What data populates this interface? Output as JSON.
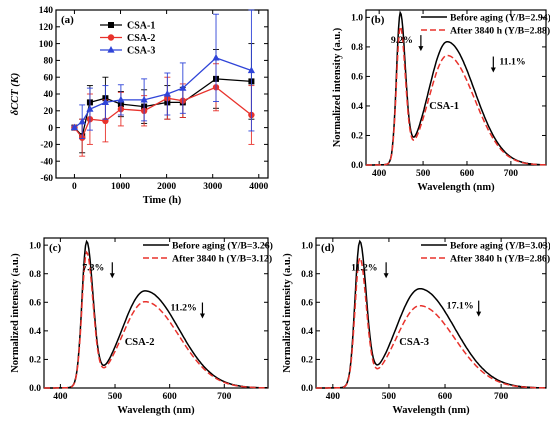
{
  "figure": {
    "panels": [
      {
        "letter": "(a)",
        "chart_index": 0
      },
      {
        "letter": "(b)",
        "chart_index": 1
      },
      {
        "letter": "(c)",
        "chart_index": 2
      },
      {
        "letter": "(d)",
        "chart_index": 3
      }
    ]
  },
  "chart_data": [
    {
      "type": "line",
      "panel": "(a)",
      "xlabel": "Time (h)",
      "ylabel": "δCCT (K)",
      "xlim": [
        -400,
        4200
      ],
      "ylim": [
        -60,
        140
      ],
      "xticks": [
        0,
        1000,
        2000,
        3000,
        4000
      ],
      "yticks": [
        -60,
        -40,
        -20,
        0,
        20,
        40,
        60,
        80,
        100,
        120,
        140
      ],
      "legend_position": "top-left",
      "series": [
        {
          "name": "CSA-1",
          "color": "#000000",
          "marker": "square",
          "x": [
            0,
            168,
            336,
            672,
            1008,
            1512,
            2016,
            2352,
            3072,
            3840
          ],
          "y": [
            0,
            -10,
            30,
            35,
            28,
            25,
            30,
            30,
            58,
            55
          ],
          "err": [
            2,
            20,
            20,
            25,
            15,
            20,
            20,
            18,
            35,
            45
          ]
        },
        {
          "name": "CSA-2",
          "color": "#e8322c",
          "marker": "circle",
          "x": [
            0,
            168,
            336,
            672,
            1008,
            1512,
            2016,
            2352,
            3072,
            3840
          ],
          "y": [
            0,
            -12,
            10,
            8,
            22,
            20,
            35,
            32,
            48,
            15
          ],
          "err": [
            2,
            22,
            30,
            25,
            20,
            18,
            25,
            20,
            28,
            35
          ]
        },
        {
          "name": "CSA-3",
          "color": "#2f44d8",
          "marker": "triangle",
          "x": [
            0,
            168,
            336,
            672,
            1008,
            1512,
            2016,
            2352,
            3072,
            3840
          ],
          "y": [
            0,
            7,
            22,
            30,
            33,
            33,
            40,
            47,
            83,
            68
          ],
          "err": [
            2,
            20,
            25,
            20,
            18,
            25,
            25,
            30,
            52,
            72
          ]
        }
      ]
    },
    {
      "type": "line",
      "panel": "(b)",
      "sample_label": "CSA-1",
      "xlabel": "Wavelength (nm)",
      "ylabel": "Normalized intensity (a.u.)",
      "xlim": [
        370,
        780
      ],
      "ylim": [
        0,
        1.05
      ],
      "xticks": [
        400,
        500,
        600,
        700
      ],
      "yticks": [
        0.0,
        0.2,
        0.4,
        0.6,
        0.8,
        1.0
      ],
      "legend_position": "top-right",
      "annotations": [
        "9.2%",
        "11.1%"
      ],
      "series": [
        {
          "name": "Before aging (Y/B=2.94)",
          "color": "#000000",
          "dash": "solid",
          "blue_peak": 1.0,
          "yellow_peak": 0.835
        },
        {
          "name": "After 3840 h (Y/B=2.88)",
          "color": "#e8322c",
          "dash": "dashed",
          "blue_peak": 0.908,
          "yellow_peak": 0.742
        }
      ]
    },
    {
      "type": "line",
      "panel": "(c)",
      "sample_label": "CSA-2",
      "xlabel": "Wavelength (nm)",
      "ylabel": "Normalized intensity (a.u.)",
      "xlim": [
        370,
        780
      ],
      "ylim": [
        0,
        1.05
      ],
      "xticks": [
        400,
        500,
        600,
        700
      ],
      "yticks": [
        0.0,
        0.2,
        0.4,
        0.6,
        0.8,
        1.0
      ],
      "legend_position": "top-right",
      "annotations": [
        "7.3%",
        "11.2%"
      ],
      "series": [
        {
          "name": "Before aging (Y/B=3.26)",
          "color": "#000000",
          "dash": "solid",
          "blue_peak": 1.0,
          "yellow_peak": 0.68
        },
        {
          "name": "After 3840 h (Y/B=3.12)",
          "color": "#e8322c",
          "dash": "dashed",
          "blue_peak": 0.927,
          "yellow_peak": 0.604
        }
      ]
    },
    {
      "type": "line",
      "panel": "(d)",
      "sample_label": "CSA-3",
      "xlabel": "Wavelength (nm)",
      "ylabel": "Normalized intensity (a.u.)",
      "xlim": [
        370,
        780
      ],
      "ylim": [
        0,
        1.05
      ],
      "xticks": [
        400,
        500,
        600,
        700
      ],
      "yticks": [
        0.0,
        0.2,
        0.4,
        0.6,
        0.8,
        1.0
      ],
      "legend_position": "top-right",
      "annotations": [
        "11.2%",
        "17.1%"
      ],
      "series": [
        {
          "name": "Before aging (Y/B=3.03)",
          "color": "#000000",
          "dash": "solid",
          "blue_peak": 1.0,
          "yellow_peak": 0.695
        },
        {
          "name": "After 3840 h (Y/B=2.86)",
          "color": "#e8322c",
          "dash": "dashed",
          "blue_peak": 0.888,
          "yellow_peak": 0.576
        }
      ]
    }
  ]
}
